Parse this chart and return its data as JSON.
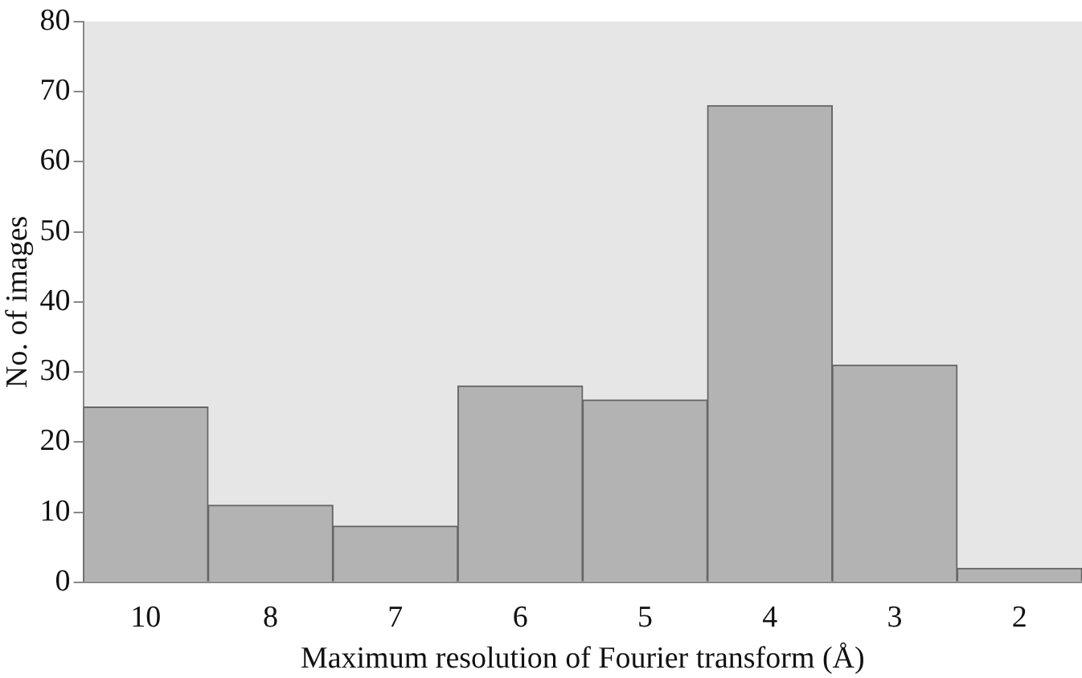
{
  "chart_data": {
    "type": "bar",
    "xlabel": "Maximum resolution of Fourier transform (Å)",
    "ylabel": "No. of images",
    "categories": [
      "10",
      "8",
      "7",
      "6",
      "5",
      "4",
      "3",
      "2"
    ],
    "values": [
      25,
      11,
      8,
      28,
      26,
      68,
      31,
      2
    ],
    "color": "#b3b3b3",
    "ylim": [
      0,
      80
    ],
    "yticks": [
      0,
      10,
      20,
      30,
      40,
      50,
      60,
      70,
      80
    ],
    "grid": false,
    "legend": false
  }
}
